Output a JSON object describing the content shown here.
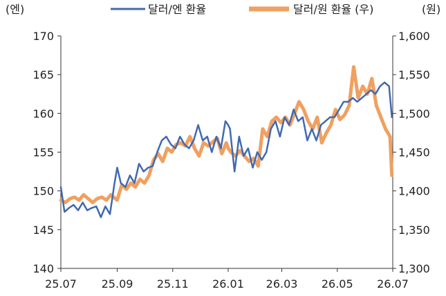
{
  "chart_data": {
    "type": "line",
    "y_unit_left": "(엔)",
    "y_unit_right": "(원)",
    "xlim": [
      "2025-07-01",
      "2026-07-01"
    ],
    "x_tick_labels": [
      "25.07",
      "25.09",
      "25.11",
      "26.01",
      "26.03",
      "26.05",
      "26.07"
    ],
    "x_tick_dates": [
      "2025-07-01",
      "2025-09-01",
      "2025-11-01",
      "2026-01-01",
      "2026-03-01",
      "2026-05-01",
      "2026-07-01"
    ],
    "ylim_left": [
      140,
      170
    ],
    "y_ticks_left": [
      140,
      145,
      150,
      155,
      160,
      165,
      170
    ],
    "y_tick_labels_left": [
      "140",
      "145",
      "150",
      "155",
      "160",
      "165",
      "170"
    ],
    "ylim_right": [
      1300,
      1600
    ],
    "y_ticks_right": [
      1300,
      1350,
      1400,
      1450,
      1500,
      1550,
      1600
    ],
    "y_tick_labels_right": [
      "1,300",
      "1,350",
      "1,400",
      "1,450",
      "1,500",
      "1,550",
      "1,600"
    ],
    "legend_position": "top",
    "grid": false,
    "series": [
      {
        "name": "달러/엔 환율",
        "axis": "left",
        "color": "#4169b0",
        "x": [
          "2025-07-01",
          "2025-07-05",
          "2025-07-10",
          "2025-07-15",
          "2025-07-20",
          "2025-07-25",
          "2025-07-30",
          "2025-08-04",
          "2025-08-09",
          "2025-08-14",
          "2025-08-19",
          "2025-08-24",
          "2025-08-29",
          "2025-09-01",
          "2025-09-05",
          "2025-09-10",
          "2025-09-15",
          "2025-09-20",
          "2025-09-25",
          "2025-09-30",
          "2025-10-05",
          "2025-10-10",
          "2025-10-15",
          "2025-10-20",
          "2025-10-25",
          "2025-10-30",
          "2025-11-04",
          "2025-11-09",
          "2025-11-14",
          "2025-11-19",
          "2025-11-24",
          "2025-11-29",
          "2025-12-04",
          "2025-12-09",
          "2025-12-14",
          "2025-12-19",
          "2025-12-24",
          "2025-12-29",
          "2026-01-01",
          "2026-01-03",
          "2026-01-08",
          "2026-01-13",
          "2026-01-18",
          "2026-01-23",
          "2026-01-28",
          "2026-02-02",
          "2026-02-07",
          "2026-02-12",
          "2026-02-17",
          "2026-02-22",
          "2026-02-27",
          "2026-03-04",
          "2026-03-09",
          "2026-03-14",
          "2026-03-19",
          "2026-03-24",
          "2026-03-29",
          "2026-04-03",
          "2026-04-08",
          "2026-04-13",
          "2026-04-18",
          "2026-04-23",
          "2026-04-28",
          "2026-05-03",
          "2026-05-08",
          "2026-05-13",
          "2026-05-18",
          "2026-05-23",
          "2026-05-28",
          "2026-06-02",
          "2026-06-07",
          "2026-06-12",
          "2026-06-17",
          "2026-06-22",
          "2026-06-27",
          "2026-06-30"
        ],
        "values": [
          150.5,
          147.3,
          147.8,
          148.2,
          147.5,
          148.5,
          147.5,
          147.8,
          148.0,
          146.6,
          148.0,
          147.0,
          151.0,
          153.0,
          151.0,
          150.5,
          152.0,
          151.0,
          153.5,
          152.5,
          153.0,
          153.2,
          155.0,
          156.5,
          157.0,
          156.0,
          155.5,
          157.0,
          156.0,
          155.5,
          156.5,
          158.5,
          156.5,
          157.0,
          155.0,
          157.0,
          155.5,
          159.0,
          158.5,
          158.0,
          152.5,
          157.0,
          154.5,
          155.5,
          153.0,
          155.0,
          154.0,
          155.0,
          158.0,
          159.0,
          157.0,
          159.5,
          158.5,
          160.5,
          159.0,
          159.5,
          156.5,
          158.0,
          156.5,
          158.5,
          159.0,
          159.5,
          159.5,
          160.5,
          161.5,
          161.5,
          162.0,
          161.5,
          162.0,
          162.5,
          163.0,
          162.5,
          163.5,
          164.0,
          163.5,
          159.5
        ]
      },
      {
        "name": "달러/원 환율 (우)",
        "axis": "right",
        "color": "#f0a060",
        "x": [
          "2025-07-01",
          "2025-07-06",
          "2025-07-11",
          "2025-07-16",
          "2025-07-21",
          "2025-07-26",
          "2025-07-31",
          "2025-08-05",
          "2025-08-10",
          "2025-08-15",
          "2025-08-20",
          "2025-08-25",
          "2025-08-30",
          "2025-09-01",
          "2025-09-06",
          "2025-09-11",
          "2025-09-16",
          "2025-09-21",
          "2025-09-26",
          "2025-10-01",
          "2025-10-06",
          "2025-10-11",
          "2025-10-16",
          "2025-10-21",
          "2025-10-26",
          "2025-10-31",
          "2025-11-05",
          "2025-11-10",
          "2025-11-15",
          "2025-11-20",
          "2025-11-25",
          "2025-11-30",
          "2025-12-05",
          "2025-12-10",
          "2025-12-15",
          "2025-12-20",
          "2025-12-25",
          "2025-12-30",
          "2026-01-01",
          "2026-01-04",
          "2026-01-09",
          "2026-01-14",
          "2026-01-19",
          "2026-01-24",
          "2026-01-29",
          "2026-02-03",
          "2026-02-08",
          "2026-02-13",
          "2026-02-18",
          "2026-02-23",
          "2026-02-28",
          "2026-03-05",
          "2026-03-10",
          "2026-03-15",
          "2026-03-20",
          "2026-03-25",
          "2026-03-30",
          "2026-04-04",
          "2026-04-09",
          "2026-04-14",
          "2026-04-19",
          "2026-04-24",
          "2026-04-29",
          "2026-05-04",
          "2026-05-09",
          "2026-05-14",
          "2026-05-19",
          "2026-05-24",
          "2026-05-29",
          "2026-06-03",
          "2026-06-08",
          "2026-06-13",
          "2026-06-18",
          "2026-06-23",
          "2026-06-28",
          "2026-06-30"
        ],
        "values": [
          1388,
          1385,
          1390,
          1392,
          1388,
          1395,
          1390,
          1385,
          1390,
          1392,
          1388,
          1395,
          1390,
          1388,
          1408,
          1402,
          1410,
          1405,
          1415,
          1410,
          1420,
          1440,
          1448,
          1438,
          1455,
          1450,
          1460,
          1462,
          1458,
          1470,
          1455,
          1445,
          1462,
          1458,
          1463,
          1468,
          1448,
          1462,
          1455,
          1450,
          1445,
          1452,
          1445,
          1438,
          1442,
          1432,
          1480,
          1470,
          1490,
          1495,
          1488,
          1495,
          1485,
          1500,
          1515,
          1505,
          1490,
          1480,
          1495,
          1462,
          1475,
          1485,
          1505,
          1492,
          1498,
          1510,
          1560,
          1520,
          1535,
          1525,
          1545,
          1510,
          1495,
          1480,
          1470,
          1420
        ]
      }
    ]
  }
}
